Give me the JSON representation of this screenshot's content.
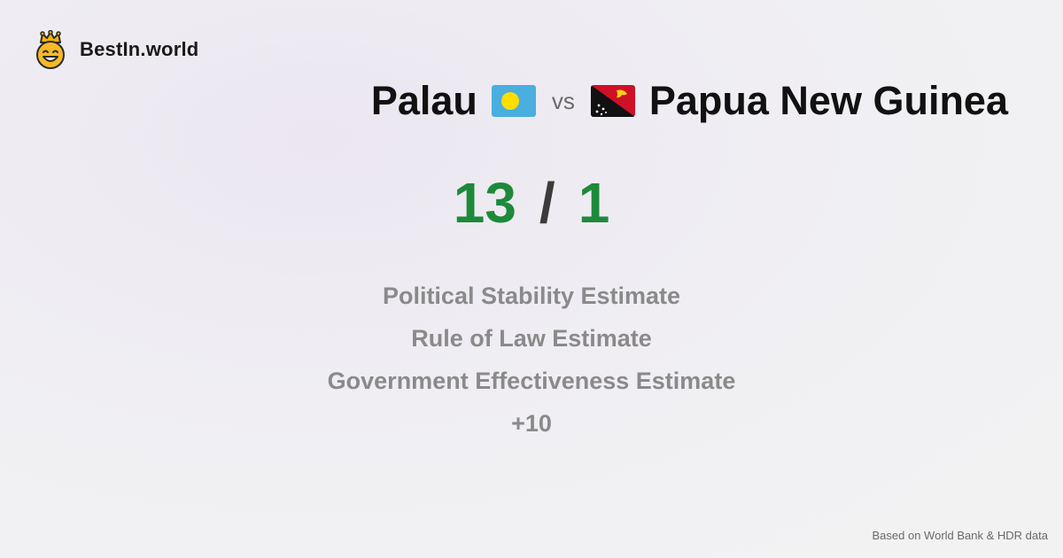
{
  "brand": {
    "name": "BestIn.world",
    "logo_icon": "crown-smiley-icon"
  },
  "comparison": {
    "country_a": {
      "name": "Palau",
      "flag_icon": "palau-flag-icon"
    },
    "vs_label": "vs",
    "country_b": {
      "name": "Papua New Guinea",
      "flag_icon": "papua-new-guinea-flag-icon"
    }
  },
  "score": {
    "a": "13",
    "separator": "/",
    "b": "1",
    "color": "#1d8a3a"
  },
  "metrics": [
    "Political Stability Estimate",
    "Rule of Law Estimate",
    "Government Effectiveness Estimate",
    "+10"
  ],
  "footnote": "Based on World Bank & HDR data"
}
